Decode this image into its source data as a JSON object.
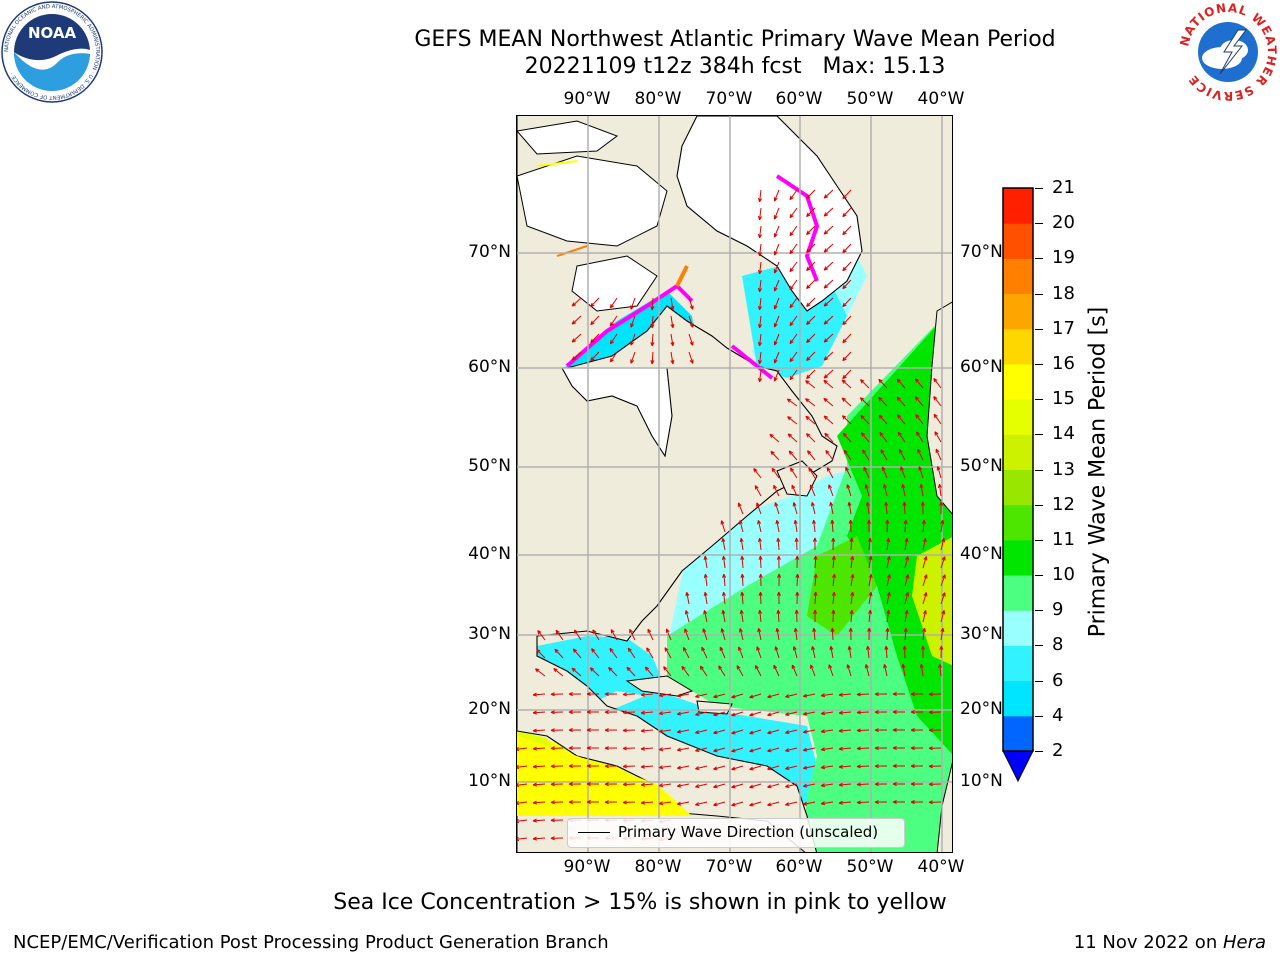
{
  "title": {
    "line1": "GEFS MEAN Northwest Atlantic Primary Wave Mean Period",
    "line2": "20221109 t12z 384h fcst   Max: 15.13"
  },
  "map": {
    "lon_ticks": [
      "90°W",
      "80°W",
      "70°W",
      "60°W",
      "50°W",
      "40°W"
    ],
    "lat_ticks": [
      "70°N",
      "60°N",
      "50°N",
      "40°N",
      "30°N",
      "20°N",
      "10°N"
    ],
    "legend_label": "Primary Wave Direction (unscaled)",
    "land_color": "#efecdc",
    "ice_colors": [
      "#ff00ff",
      "#ff8000",
      "#ffff00"
    ]
  },
  "colorbar": {
    "label": "Primary Wave Mean Period [s]",
    "ticks": [
      "2",
      "4",
      "6",
      "8",
      "9",
      "10",
      "11",
      "12",
      "13",
      "14",
      "15",
      "16",
      "17",
      "18",
      "19",
      "20",
      "21"
    ],
    "colors": [
      "#0066ff",
      "#00e5ff",
      "#33f2ff",
      "#99ffff",
      "#4dff80",
      "#00e600",
      "#4de600",
      "#99e600",
      "#ccf200",
      "#e6ff00",
      "#ffff00",
      "#ffd700",
      "#ffa500",
      "#ff8000",
      "#ff5000",
      "#ff2000"
    ],
    "under_color": "#0000ff"
  },
  "caption": "Sea Ice Concentration > 15% is shown in pink to yellow",
  "footer": {
    "left": "NCEP/EMC/Verification Post Processing Product Generation Branch",
    "right_date": "11 Nov 2022 on ",
    "right_host": "Hera"
  },
  "logos": {
    "noaa_text": "NOAA",
    "noaa_ring": "NATIONAL OCEANIC AND ATMOSPHERIC ADMINISTRATION · U.S. DEPARTMENT OF COMMERCE ·",
    "nws_ring": "NATIONAL WEATHER SERVICE"
  }
}
